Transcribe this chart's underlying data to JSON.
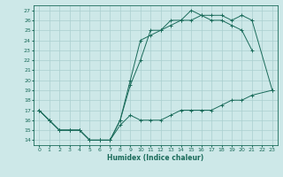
{
  "xlabel": "Humidex (Indice chaleur)",
  "background_color": "#cde8e8",
  "grid_color": "#aacfcf",
  "line_color": "#1a6b5a",
  "xlim": [
    -0.5,
    23.5
  ],
  "ylim": [
    13.5,
    27.5
  ],
  "xticks": [
    0,
    1,
    2,
    3,
    4,
    5,
    6,
    7,
    8,
    9,
    10,
    11,
    12,
    13,
    14,
    15,
    16,
    17,
    18,
    19,
    20,
    21,
    22,
    23
  ],
  "yticks": [
    14,
    15,
    16,
    17,
    18,
    19,
    20,
    21,
    22,
    23,
    24,
    25,
    26,
    27
  ],
  "x_max": [
    0,
    1,
    2,
    3,
    4,
    5,
    6,
    7,
    8,
    9,
    10,
    11,
    12,
    13,
    14,
    15,
    16,
    17,
    18,
    19,
    20,
    21
  ],
  "y_max": [
    17,
    16,
    15,
    15,
    15,
    14,
    14,
    14,
    16,
    20,
    24,
    24.5,
    25,
    25.5,
    26,
    27,
    26.5,
    26,
    26,
    25.5,
    25,
    23
  ],
  "x_mid": [
    0,
    1,
    2,
    3,
    4,
    5,
    6,
    7,
    8,
    9,
    10,
    11,
    12,
    13,
    14,
    15,
    16,
    17,
    18,
    19,
    20,
    21,
    23
  ],
  "y_mid": [
    17,
    16,
    15,
    15,
    15,
    14,
    14,
    14,
    16,
    19.5,
    22,
    25,
    25,
    26,
    26,
    26,
    26.5,
    26.5,
    26.5,
    26,
    26.5,
    26,
    19
  ],
  "x_min": [
    0,
    1,
    2,
    3,
    4,
    5,
    6,
    7,
    8,
    9,
    10,
    11,
    12,
    13,
    14,
    15,
    16,
    17,
    18,
    19,
    20,
    21,
    23
  ],
  "y_min": [
    17,
    16,
    15,
    15,
    15,
    14,
    14,
    14,
    15.5,
    16.5,
    16,
    16,
    16,
    16.5,
    17,
    17,
    17,
    17,
    17.5,
    18,
    18,
    18.5,
    19
  ]
}
